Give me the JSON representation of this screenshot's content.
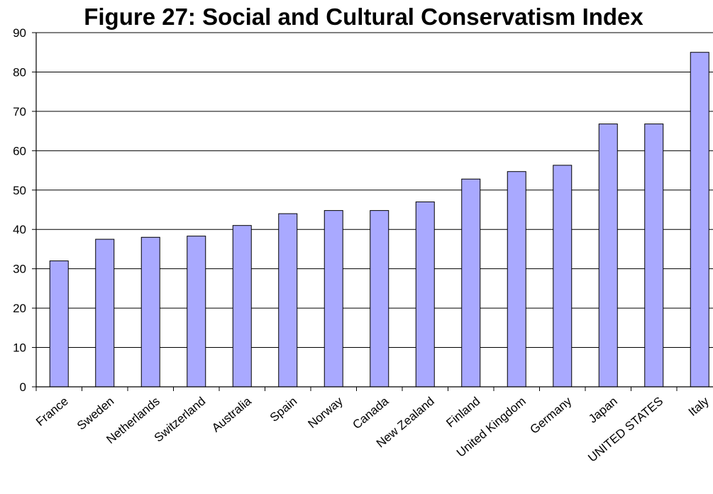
{
  "chart_data": {
    "type": "bar",
    "title": "Figure 27: Social and Cultural Conservatism Index",
    "xlabel": "",
    "ylabel": "",
    "categories": [
      "France",
      "Sweden",
      "Netherlands",
      "Switzerland",
      "Australia",
      "Spain",
      "Norway",
      "Canada",
      "New Zealand",
      "Finland",
      "United Kingdom",
      "Germany",
      "Japan",
      "UNITED STATES",
      "Italy"
    ],
    "values": [
      32,
      37.5,
      38,
      38.3,
      41,
      44,
      44.8,
      44.8,
      47,
      52.8,
      54.7,
      56.3,
      66.8,
      66.8,
      85
    ],
    "ylim": [
      0,
      90
    ],
    "yticks": [
      "0",
      "10",
      "20",
      "30",
      "40",
      "50",
      "60",
      "70",
      "80",
      "90"
    ],
    "grid": true,
    "legend": "none",
    "colors": {
      "bar_fill": "#a9a9ff",
      "bar_stroke": "#000000",
      "grid": "#000000"
    }
  }
}
